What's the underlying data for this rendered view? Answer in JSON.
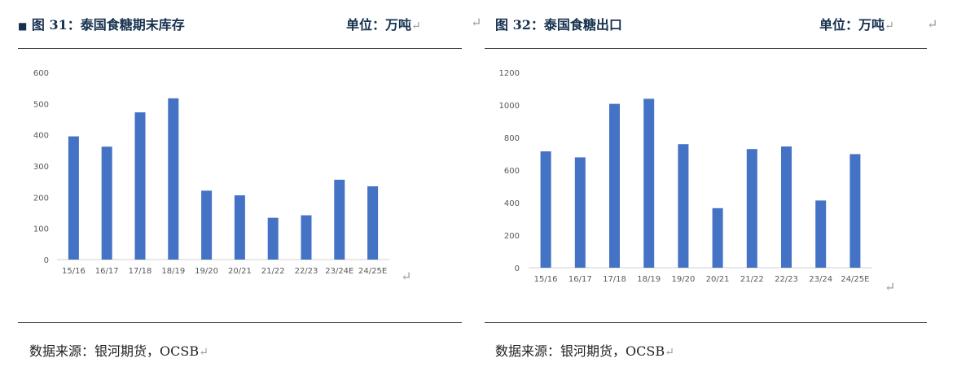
{
  "charts": [
    {
      "header": {
        "square": "■",
        "title": "图 31：泰国食糖期末库存",
        "unit": "单位：万吨",
        "return_mark": "↵"
      },
      "source": "数据来源：银河期货，OCSB",
      "source_mark": "↵",
      "after_mark": "↵",
      "chart_data": {
        "type": "bar",
        "categories": [
          "15/16",
          "16/17",
          "17/18",
          "18/19",
          "19/20",
          "20/21",
          "21/22",
          "22/23",
          "23/24E",
          "24/25E"
        ],
        "values": [
          395,
          362,
          472,
          517,
          221,
          206,
          134,
          142,
          256,
          235
        ],
        "ylim": [
          0,
          600
        ],
        "yticks": [
          "0",
          "100",
          "200",
          "300",
          "400",
          "500",
          "600"
        ],
        "grid": false,
        "legend": "none",
        "bar_color": "#4472c4"
      }
    },
    {
      "header": {
        "lead_mark": "↵",
        "title": "图 32：泰国食糖出口",
        "unit": "单位：万吨",
        "return_mark": "↵"
      },
      "source": "数据来源：银河期货，OCSB",
      "source_mark": "↵",
      "after_mark": "↵",
      "trailing_mark": "↵",
      "chart_data": {
        "type": "bar",
        "categories": [
          "15/16",
          "16/17",
          "17/18",
          "18/19",
          "19/20",
          "20/21",
          "21/22",
          "22/23",
          "23/24",
          "24/25E"
        ],
        "values": [
          715,
          678,
          1007,
          1038,
          759,
          366,
          729,
          745,
          413,
          698
        ],
        "ylim": [
          0,
          1200
        ],
        "yticks": [
          "0",
          "200",
          "400",
          "600",
          "800",
          "1000",
          "1200"
        ],
        "grid": false,
        "legend": "none",
        "bar_color": "#4472c4"
      }
    }
  ]
}
